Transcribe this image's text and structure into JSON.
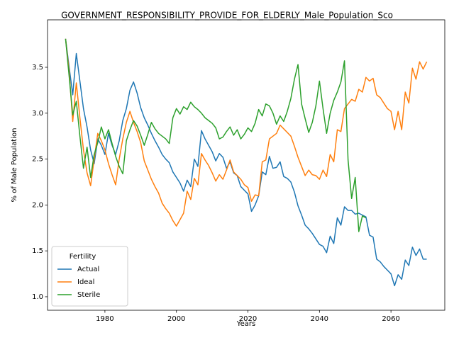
{
  "chart_data": {
    "type": "line",
    "title": "GOVERNMENT_RESPONSIBILITY_PROVIDE_FOR_ELDERLY_Male_Population_Sco",
    "xlabel": "Years",
    "ylabel": "% of Male Population",
    "x": [
      1969,
      1970,
      1971,
      1972,
      1973,
      1974,
      1975,
      1976,
      1977,
      1978,
      1979,
      1980,
      1981,
      1982,
      1983,
      1984,
      1985,
      1986,
      1987,
      1988,
      1989,
      1990,
      1991,
      1992,
      1993,
      1994,
      1995,
      1996,
      1997,
      1998,
      1999,
      2000,
      2001,
      2002,
      2003,
      2004,
      2005,
      2006,
      2007,
      2008,
      2009,
      2010,
      2011,
      2012,
      2013,
      2014,
      2015,
      2016,
      2017,
      2018,
      2019,
      2020,
      2021,
      2022,
      2023,
      2024,
      2025,
      2026,
      2027,
      2028,
      2029,
      2030,
      2031,
      2032,
      2033,
      2034,
      2035,
      2036,
      2037,
      2038,
      2039,
      2040,
      2041,
      2042,
      2043,
      2044,
      2045,
      2046,
      2047,
      2048,
      2049,
      2050,
      2051,
      2052,
      2053,
      2054,
      2055,
      2056,
      2057,
      2058,
      2059,
      2060,
      2061,
      2062,
      2063,
      2064,
      2065,
      2066,
      2067,
      2068,
      2069,
      2070
    ],
    "series": [
      {
        "name": "Actual",
        "color": "#1f77b4",
        "values": [
          3.81,
          3.5,
          3.2,
          3.65,
          3.35,
          3.05,
          2.85,
          2.6,
          2.45,
          2.72,
          2.65,
          2.55,
          2.78,
          2.65,
          2.55,
          2.7,
          2.92,
          3.05,
          3.25,
          3.34,
          3.22,
          3.06,
          2.95,
          2.87,
          2.78,
          2.7,
          2.63,
          2.55,
          2.5,
          2.46,
          2.36,
          2.3,
          2.24,
          2.15,
          2.27,
          2.2,
          2.5,
          2.42,
          2.81,
          2.72,
          2.65,
          2.58,
          2.48,
          2.56,
          2.52,
          2.4,
          2.47,
          2.35,
          2.32,
          2.2,
          2.16,
          2.12,
          1.93,
          2.0,
          2.1,
          2.36,
          2.33,
          2.53,
          2.4,
          2.41,
          2.47,
          2.31,
          2.29,
          2.25,
          2.14,
          1.99,
          1.89,
          1.78,
          1.74,
          1.69,
          1.63,
          1.57,
          1.55,
          1.48,
          1.66,
          1.58,
          1.86,
          1.78,
          1.98,
          1.94,
          1.94,
          1.9,
          1.91,
          1.89,
          1.87,
          1.67,
          1.65,
          1.41,
          1.38,
          1.33,
          1.29,
          1.25,
          1.12,
          1.24,
          1.19,
          1.4,
          1.34,
          1.54,
          1.45,
          1.52,
          1.41,
          1.41
        ]
      },
      {
        "name": "Ideal",
        "color": "#ff7f0e",
        "values": [
          3.81,
          3.45,
          2.91,
          3.33,
          2.95,
          2.6,
          2.35,
          2.21,
          2.5,
          2.78,
          2.7,
          2.6,
          2.45,
          2.33,
          2.22,
          2.5,
          2.72,
          2.9,
          3.02,
          2.9,
          2.8,
          2.68,
          2.48,
          2.38,
          2.28,
          2.2,
          2.13,
          2.02,
          1.96,
          1.91,
          1.83,
          1.77,
          1.84,
          1.91,
          2.15,
          2.06,
          2.29,
          2.22,
          2.56,
          2.49,
          2.43,
          2.35,
          2.26,
          2.33,
          2.28,
          2.38,
          2.49,
          2.36,
          2.32,
          2.28,
          2.22,
          2.19,
          2.04,
          2.11,
          2.1,
          2.47,
          2.49,
          2.72,
          2.75,
          2.78,
          2.87,
          2.83,
          2.79,
          2.75,
          2.64,
          2.52,
          2.42,
          2.32,
          2.38,
          2.33,
          2.32,
          2.28,
          2.38,
          2.31,
          2.55,
          2.47,
          2.82,
          2.8,
          3.05,
          3.1,
          3.15,
          3.13,
          3.26,
          3.23,
          3.39,
          3.35,
          3.38,
          3.2,
          3.17,
          3.11,
          3.05,
          3.02,
          2.82,
          3.02,
          2.82,
          3.23,
          3.11,
          3.49,
          3.37,
          3.56,
          3.48,
          3.56
        ]
      },
      {
        "name": "Sterile",
        "color": "#2ca02c",
        "values": [
          3.81,
          3.4,
          2.98,
          3.13,
          2.75,
          2.4,
          2.63,
          2.3,
          2.55,
          2.68,
          2.85,
          2.72,
          2.82,
          2.67,
          2.53,
          2.42,
          2.34,
          2.7,
          2.82,
          2.92,
          2.86,
          2.76,
          2.65,
          2.77,
          2.9,
          2.83,
          2.78,
          2.75,
          2.72,
          2.67,
          2.95,
          3.05,
          2.99,
          3.07,
          3.04,
          3.12,
          3.07,
          3.04,
          3.0,
          2.95,
          2.92,
          2.89,
          2.84,
          2.72,
          2.74,
          2.8,
          2.85,
          2.76,
          2.82,
          2.72,
          2.77,
          2.84,
          2.8,
          2.89,
          3.04,
          2.97,
          3.1,
          3.08,
          3.0,
          2.88,
          2.97,
          2.91,
          3.02,
          3.16,
          3.37,
          3.53,
          3.1,
          2.94,
          2.79,
          2.9,
          3.08,
          3.35,
          3.05,
          2.78,
          3.0,
          3.14,
          3.23,
          3.34,
          3.57,
          2.49,
          2.07,
          2.3,
          1.71,
          1.88,
          1.86,
          null,
          null,
          null,
          null,
          null,
          null,
          null,
          null,
          null,
          null,
          null,
          null,
          null,
          null,
          null,
          null,
          null
        ]
      }
    ],
    "xlim": [
      1963.95,
      2075.05
    ],
    "ylim": [
      0.853,
      4.017
    ],
    "xticks": [
      1980,
      2000,
      2020,
      2040,
      2060
    ],
    "yticks": [
      {
        "value": 1,
        "label": "1.0"
      },
      1.5,
      {
        "value": 2,
        "label": "2.0"
      },
      2.5,
      {
        "value": 3,
        "label": "3.0"
      },
      3.5
    ],
    "legend": {
      "title": "Fertility",
      "loc": "lower left"
    }
  }
}
